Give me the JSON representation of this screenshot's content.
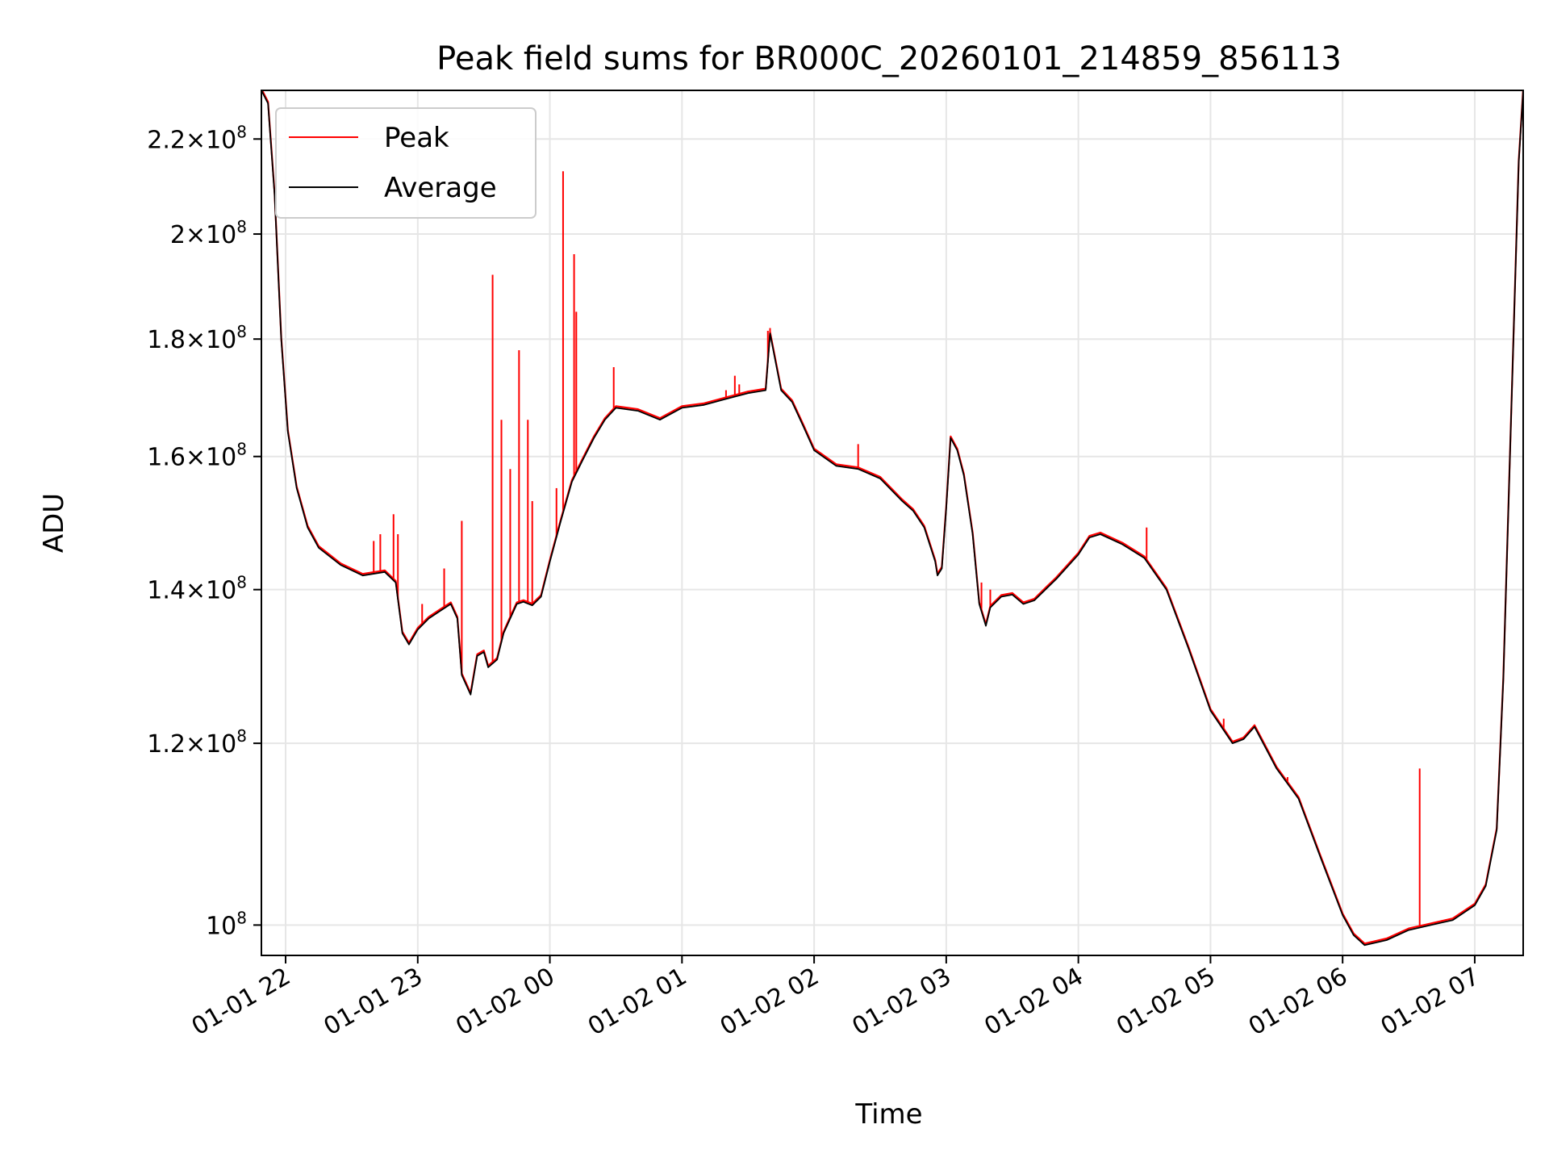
{
  "chart_data": {
    "type": "line",
    "title": "Peak field sums for BR000C_20260101_214859_856113",
    "xlabel": "Time",
    "ylabel": "ADU",
    "yscale": "log",
    "x_range": [
      "2026-01-01 21:49",
      "2026-01-02 07:22"
    ],
    "ylim": [
      97000000,
      231000000
    ],
    "grid": true,
    "legend_position": "upper left",
    "x_ticks": [
      "01-01 22",
      "01-01 23",
      "01-02 00",
      "01-02 01",
      "01-02 02",
      "01-02 03",
      "01-02 04",
      "01-02 05",
      "01-02 06",
      "01-02 07"
    ],
    "x_tick_times": [
      "2026-01-01 22:00",
      "2026-01-01 23:00",
      "2026-01-02 00:00",
      "2026-01-02 01:00",
      "2026-01-02 02:00",
      "2026-01-02 03:00",
      "2026-01-02 04:00",
      "2026-01-02 05:00",
      "2026-01-02 06:00",
      "2026-01-02 07:00"
    ],
    "y_ticks": [
      {
        "value": 100000000,
        "mantissa": "",
        "exp": "8"
      },
      {
        "value": 120000000,
        "mantissa": "1.2",
        "exp": "8"
      },
      {
        "value": 140000000,
        "mantissa": "1.4",
        "exp": "8"
      },
      {
        "value": 160000000,
        "mantissa": "1.6",
        "exp": "8"
      },
      {
        "value": 180000000,
        "mantissa": "1.8",
        "exp": "8"
      },
      {
        "value": 200000000,
        "mantissa": "2",
        "exp": "8"
      },
      {
        "value": 220000000,
        "mantissa": "2.2",
        "exp": "8"
      }
    ],
    "series": [
      {
        "name": "Average",
        "color": "#000000",
        "x": [
          "2026-01-01 21:49",
          "2026-01-01 21:52",
          "2026-01-01 21:55",
          "2026-01-01 21:58",
          "2026-01-01 22:01",
          "2026-01-01 22:05",
          "2026-01-01 22:10",
          "2026-01-01 22:15",
          "2026-01-01 22:25",
          "2026-01-01 22:35",
          "2026-01-01 22:45",
          "2026-01-01 22:50",
          "2026-01-01 22:53",
          "2026-01-01 22:56",
          "2026-01-01 23:00",
          "2026-01-01 23:05",
          "2026-01-01 23:10",
          "2026-01-01 23:15",
          "2026-01-01 23:18",
          "2026-01-01 23:20",
          "2026-01-01 23:24",
          "2026-01-01 23:27",
          "2026-01-01 23:30",
          "2026-01-01 23:32",
          "2026-01-01 23:36",
          "2026-01-01 23:39",
          "2026-01-01 23:42",
          "2026-01-01 23:45",
          "2026-01-01 23:48",
          "2026-01-01 23:52",
          "2026-01-01 23:56",
          "2026-01-02 00:00",
          "2026-01-02 00:05",
          "2026-01-02 00:10",
          "2026-01-02 00:15",
          "2026-01-02 00:20",
          "2026-01-02 00:25",
          "2026-01-02 00:30",
          "2026-01-02 00:40",
          "2026-01-02 00:50",
          "2026-01-02 01:00",
          "2026-01-02 01:10",
          "2026-01-02 01:20",
          "2026-01-02 01:30",
          "2026-01-02 01:35",
          "2026-01-02 01:38",
          "2026-01-02 01:40",
          "2026-01-02 01:45",
          "2026-01-02 01:50",
          "2026-01-02 01:55",
          "2026-01-02 02:00",
          "2026-01-02 02:10",
          "2026-01-02 02:20",
          "2026-01-02 02:30",
          "2026-01-02 02:40",
          "2026-01-02 02:45",
          "2026-01-02 02:50",
          "2026-01-02 02:55",
          "2026-01-02 02:56",
          "2026-01-02 02:58",
          "2026-01-02 03:00",
          "2026-01-02 03:02",
          "2026-01-02 03:05",
          "2026-01-02 03:08",
          "2026-01-02 03:12",
          "2026-01-02 03:15",
          "2026-01-02 03:18",
          "2026-01-02 03:20",
          "2026-01-02 03:25",
          "2026-01-02 03:30",
          "2026-01-02 03:35",
          "2026-01-02 03:40",
          "2026-01-02 03:45",
          "2026-01-02 03:50",
          "2026-01-02 04:00",
          "2026-01-02 04:05",
          "2026-01-02 04:10",
          "2026-01-02 04:20",
          "2026-01-02 04:30",
          "2026-01-02 04:40",
          "2026-01-02 04:50",
          "2026-01-02 05:00",
          "2026-01-02 05:10",
          "2026-01-02 05:15",
          "2026-01-02 05:20",
          "2026-01-02 05:30",
          "2026-01-02 05:40",
          "2026-01-02 05:50",
          "2026-01-02 06:00",
          "2026-01-02 06:05",
          "2026-01-02 06:10",
          "2026-01-02 06:20",
          "2026-01-02 06:30",
          "2026-01-02 06:40",
          "2026-01-02 06:50",
          "2026-01-02 07:00",
          "2026-01-02 07:05",
          "2026-01-02 07:10",
          "2026-01-02 07:13",
          "2026-01-02 07:16",
          "2026-01-02 07:20",
          "2026-01-02 07:22"
        ],
        "values": [
          231000000,
          228000000,
          208000000,
          180000000,
          164000000,
          155000000,
          149000000,
          146000000,
          143500000,
          142000000,
          142500000,
          141000000,
          134000000,
          132500000,
          134500000,
          136000000,
          137000000,
          138000000,
          136000000,
          128500000,
          126000000,
          131000000,
          131500000,
          129500000,
          130500000,
          134000000,
          136000000,
          138000000,
          138300000,
          137800000,
          139000000,
          144000000,
          150000000,
          156000000,
          159500000,
          163000000,
          166000000,
          168000000,
          167500000,
          166000000,
          168000000,
          168500000,
          169500000,
          170500000,
          170800000,
          171000000,
          181000000,
          171000000,
          169000000,
          165000000,
          161000000,
          158500000,
          158000000,
          156500000,
          153000000,
          151500000,
          149000000,
          144000000,
          142000000,
          143000000,
          152000000,
          163000000,
          161000000,
          157000000,
          148000000,
          138000000,
          135000000,
          137500000,
          139000000,
          139300000,
          138000000,
          138500000,
          140000000,
          141500000,
          145000000,
          147500000,
          148000000,
          146500000,
          144500000,
          140000000,
          132000000,
          124000000,
          120000000,
          120500000,
          122000000,
          117000000,
          113500000,
          107000000,
          101000000,
          99000000,
          98000000,
          98500000,
          99500000,
          100000000,
          100500000,
          102000000,
          104000000,
          110000000,
          128000000,
          160000000,
          215000000,
          231000000
        ]
      },
      {
        "name": "Peak",
        "color": "#ff0000",
        "x": [
          "2026-01-01 22:40",
          "2026-01-01 22:43",
          "2026-01-01 22:49",
          "2026-01-01 22:51",
          "2026-01-01 23:02",
          "2026-01-01 23:12",
          "2026-01-01 23:20",
          "2026-01-01 23:34",
          "2026-01-01 23:38",
          "2026-01-01 23:42",
          "2026-01-01 23:46",
          "2026-01-01 23:50",
          "2026-01-01 23:52",
          "2026-01-02 00:03",
          "2026-01-02 00:06",
          "2026-01-02 00:11",
          "2026-01-02 00:12",
          "2026-01-02 00:29",
          "2026-01-02 01:20",
          "2026-01-02 01:24",
          "2026-01-02 01:26",
          "2026-01-02 01:39",
          "2026-01-02 01:40",
          "2026-01-02 02:20",
          "2026-01-02 03:16",
          "2026-01-02 03:20",
          "2026-01-02 04:31",
          "2026-01-02 05:06",
          "2026-01-02 05:35",
          "2026-01-02 06:35"
        ],
        "values": [
          147000000,
          148000000,
          151000000,
          148000000,
          138000000,
          143000000,
          150000000,
          192000000,
          166000000,
          158000000,
          178000000,
          166000000,
          153000000,
          155000000,
          213000000,
          196000000,
          185000000,
          175000000,
          171000000,
          173500000,
          172000000,
          181500000,
          182000000,
          162000000,
          141000000,
          140000000,
          149000000,
          123000000,
          116000000,
          117000000
        ]
      }
    ]
  }
}
